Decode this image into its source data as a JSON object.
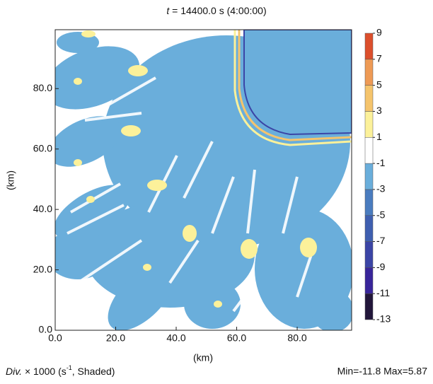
{
  "chart_data": {
    "type": "heatmap",
    "title_variable": "t",
    "title": "= 14400.0 s (4:00:00)",
    "x_label": "(km)",
    "y_label": "(km)",
    "xlim": [
      0,
      98
    ],
    "ylim": [
      0,
      99.5
    ],
    "xticks": [
      {
        "value": 0,
        "label": "0.0"
      },
      {
        "value": 20,
        "label": "20.0"
      },
      {
        "value": 40,
        "label": "40.0"
      },
      {
        "value": 60,
        "label": "60.0"
      },
      {
        "value": 80,
        "label": "80.0"
      }
    ],
    "yticks": [
      {
        "value": 0,
        "label": "0.0"
      },
      {
        "value": 20,
        "label": "20.0"
      },
      {
        "value": 40,
        "label": "40.0"
      },
      {
        "value": 60,
        "label": "60.0"
      },
      {
        "value": 80,
        "label": "80.0"
      }
    ],
    "colorbar": {
      "lim": [
        -13,
        9
      ],
      "ticks": [
        9,
        7,
        5,
        3,
        1,
        -1,
        -3,
        -5,
        -7,
        -9,
        -11,
        -13
      ],
      "levels": [
        -13,
        -11,
        -9,
        -7,
        -5,
        -3,
        -1,
        1,
        3,
        5,
        7,
        9
      ],
      "colors": [
        "#22163a",
        "#38259a",
        "#3b45a6",
        "#3f5fb0",
        "#4a7cbf",
        "#6aaedb",
        "#ffffff",
        "#fcf19a",
        "#f5c46c",
        "#ee9a55",
        "#dc4f2c"
      ]
    },
    "footer_variable": "Div.",
    "footer_label": "× 1000 (s",
    "footer_exponent": "-1",
    "footer_suffix": ", Shaded)",
    "footer_right": "Min=-11.8 Max=5.87"
  }
}
